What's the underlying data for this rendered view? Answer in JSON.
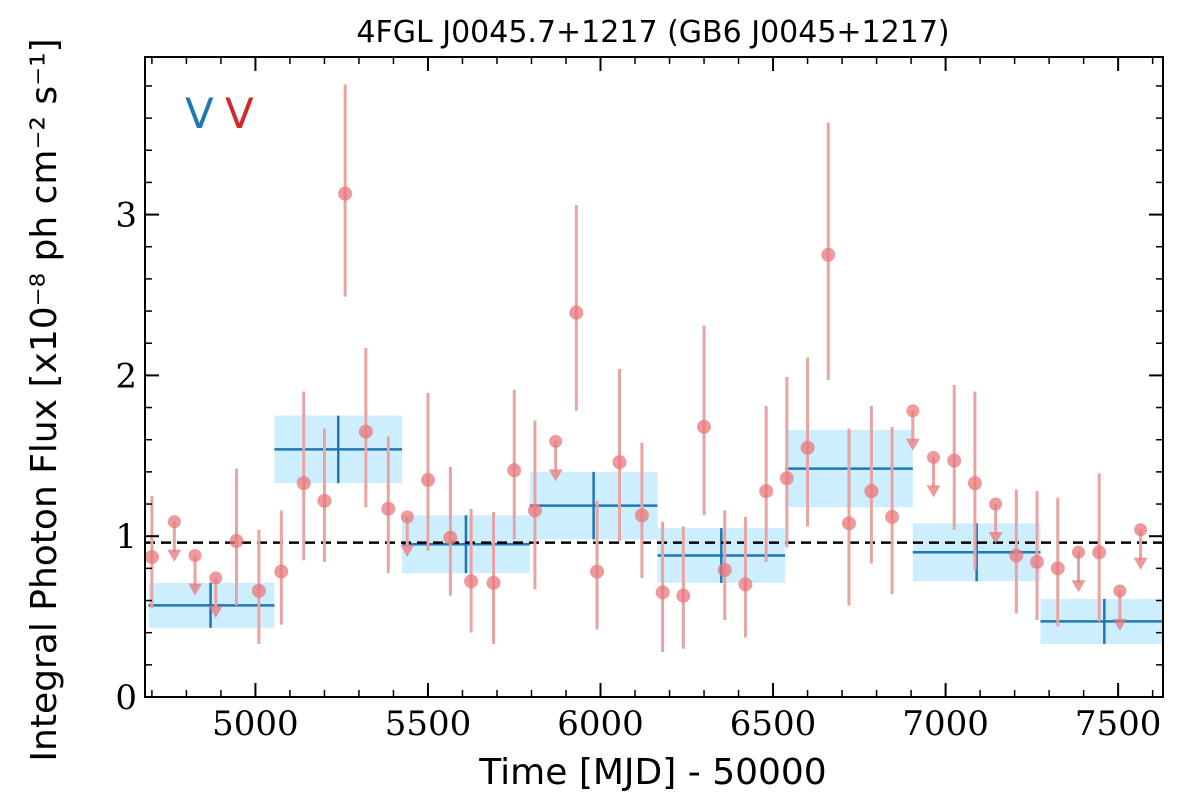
{
  "chart_data": {
    "type": "scatter",
    "title": "4FGL J0045.7+1217 (GB6 J0045+1217)",
    "xlabel": "Time [MJD] - 50000",
    "ylabel": "Integral Photon Flux [x10⁻⁸ ph cm⁻² s⁻¹]",
    "xlim": [
      4680,
      7630
    ],
    "ylim": [
      0,
      3.98
    ],
    "x_ticks": [
      5000,
      5500,
      6000,
      6500,
      7000,
      7500
    ],
    "y_ticks": [
      0,
      1,
      2,
      3
    ],
    "x_tick_labels": [
      "5000",
      "5500",
      "6000",
      "6500",
      "7000",
      "7500"
    ],
    "y_tick_labels": [
      "0",
      "1",
      "2",
      "3"
    ],
    "legend": [
      {
        "label": "V",
        "color": "#1f77b4"
      },
      {
        "label": "V",
        "color": "#d62728"
      }
    ],
    "colors": {
      "binned_line": "#1f77b4",
      "binned_fill": "#cdeefe",
      "points": "#e8777a",
      "errorbars": "#e8a3a3",
      "mean_line": "#000000"
    },
    "mean_flux": 0.96,
    "binned": [
      {
        "x0": 4690,
        "x1": 5055,
        "xc": 4870,
        "y": 0.57,
        "yerr": 0.14
      },
      {
        "x0": 5055,
        "x1": 5425,
        "xc": 5240,
        "y": 1.54,
        "yerr": 0.21
      },
      {
        "x0": 5425,
        "x1": 5795,
        "xc": 5610,
        "y": 0.95,
        "yerr": 0.18
      },
      {
        "x0": 5795,
        "x1": 6165,
        "xc": 5980,
        "y": 1.19,
        "yerr": 0.21
      },
      {
        "x0": 6165,
        "x1": 6535,
        "xc": 6350,
        "y": 0.88,
        "yerr": 0.17
      },
      {
        "x0": 6535,
        "x1": 6905,
        "xc": 6720,
        "y": 1.42,
        "yerr": 0.24
      },
      {
        "x0": 6905,
        "x1": 7275,
        "xc": 7090,
        "y": 0.9,
        "yerr": 0.18
      },
      {
        "x0": 7275,
        "x1": 7645,
        "xc": 7460,
        "y": 0.47,
        "yerr": 0.14
      }
    ],
    "points": [
      {
        "x": 4700,
        "y": 0.87,
        "lo": 0.55,
        "hi": 1.25
      },
      {
        "x": 4765,
        "y": 1.09,
        "upper_limit": true
      },
      {
        "x": 4825,
        "y": 0.88,
        "upper_limit": true
      },
      {
        "x": 4885,
        "y": 0.74,
        "upper_limit": true
      },
      {
        "x": 4945,
        "y": 0.97,
        "lo": 0.57,
        "hi": 1.42
      },
      {
        "x": 5010,
        "y": 0.66,
        "lo": 0.33,
        "hi": 1.04
      },
      {
        "x": 5075,
        "y": 0.78,
        "lo": 0.45,
        "hi": 1.16
      },
      {
        "x": 5140,
        "y": 1.33,
        "lo": 0.85,
        "hi": 1.9
      },
      {
        "x": 5200,
        "y": 1.22,
        "lo": 0.84,
        "hi": 1.67
      },
      {
        "x": 5260,
        "y": 3.13,
        "lo": 2.49,
        "hi": 3.81
      },
      {
        "x": 5320,
        "y": 1.65,
        "lo": 1.18,
        "hi": 2.17
      },
      {
        "x": 5385,
        "y": 1.17,
        "lo": 0.77,
        "hi": 1.62
      },
      {
        "x": 5440,
        "y": 1.12,
        "upper_limit": true
      },
      {
        "x": 5500,
        "y": 1.35,
        "lo": 0.91,
        "hi": 1.89
      },
      {
        "x": 5565,
        "y": 0.99,
        "lo": 0.63,
        "hi": 1.43
      },
      {
        "x": 5625,
        "y": 0.72,
        "lo": 0.4,
        "hi": 1.17
      },
      {
        "x": 5690,
        "y": 0.71,
        "lo": 0.33,
        "hi": 1.15
      },
      {
        "x": 5750,
        "y": 1.41,
        "lo": 0.98,
        "hi": 1.91
      },
      {
        "x": 5810,
        "y": 1.16,
        "lo": 0.67,
        "hi": 1.72
      },
      {
        "x": 5870,
        "y": 1.59,
        "upper_limit": true
      },
      {
        "x": 5930,
        "y": 2.39,
        "lo": 1.78,
        "hi": 3.06
      },
      {
        "x": 5990,
        "y": 0.78,
        "lo": 0.42,
        "hi": 1.22
      },
      {
        "x": 6055,
        "y": 1.46,
        "lo": 0.97,
        "hi": 2.04
      },
      {
        "x": 6120,
        "y": 1.13,
        "lo": 0.74,
        "hi": 1.58
      },
      {
        "x": 6180,
        "y": 0.65,
        "lo": 0.28,
        "hi": 1.09
      },
      {
        "x": 6240,
        "y": 0.63,
        "lo": 0.3,
        "hi": 1.06
      },
      {
        "x": 6300,
        "y": 1.68,
        "lo": 1.13,
        "hi": 2.31
      },
      {
        "x": 6360,
        "y": 0.79,
        "lo": 0.48,
        "hi": 1.16
      },
      {
        "x": 6420,
        "y": 0.7,
        "lo": 0.37,
        "hi": 1.12
      },
      {
        "x": 6480,
        "y": 1.28,
        "lo": 0.84,
        "hi": 1.81
      },
      {
        "x": 6540,
        "y": 1.36,
        "lo": 0.93,
        "hi": 1.99
      },
      {
        "x": 6600,
        "y": 1.55,
        "lo": 1.06,
        "hi": 2.11
      },
      {
        "x": 6660,
        "y": 2.75,
        "lo": 1.97,
        "hi": 3.57
      },
      {
        "x": 6720,
        "y": 1.08,
        "lo": 0.57,
        "hi": 1.67
      },
      {
        "x": 6785,
        "y": 1.28,
        "lo": 0.83,
        "hi": 1.81
      },
      {
        "x": 6845,
        "y": 1.12,
        "lo": 0.64,
        "hi": 1.68
      },
      {
        "x": 6905,
        "y": 1.78,
        "upper_limit": true
      },
      {
        "x": 6965,
        "y": 1.49,
        "upper_limit": true
      },
      {
        "x": 7025,
        "y": 1.47,
        "lo": 1.04,
        "hi": 1.94
      },
      {
        "x": 7085,
        "y": 1.33,
        "lo": 0.79,
        "hi": 1.9
      },
      {
        "x": 7145,
        "y": 1.2,
        "upper_limit": true
      },
      {
        "x": 7205,
        "y": 0.88,
        "lo": 0.52,
        "hi": 1.29
      },
      {
        "x": 7265,
        "y": 0.84,
        "lo": 0.48,
        "hi": 1.28
      },
      {
        "x": 7325,
        "y": 0.8,
        "lo": 0.44,
        "hi": 1.24
      },
      {
        "x": 7385,
        "y": 0.9,
        "upper_limit": true
      },
      {
        "x": 7445,
        "y": 0.9,
        "lo": 0.47,
        "hi": 1.39
      },
      {
        "x": 7505,
        "y": 0.66,
        "upper_limit": true
      },
      {
        "x": 7565,
        "y": 1.04,
        "upper_limit": true
      }
    ]
  }
}
